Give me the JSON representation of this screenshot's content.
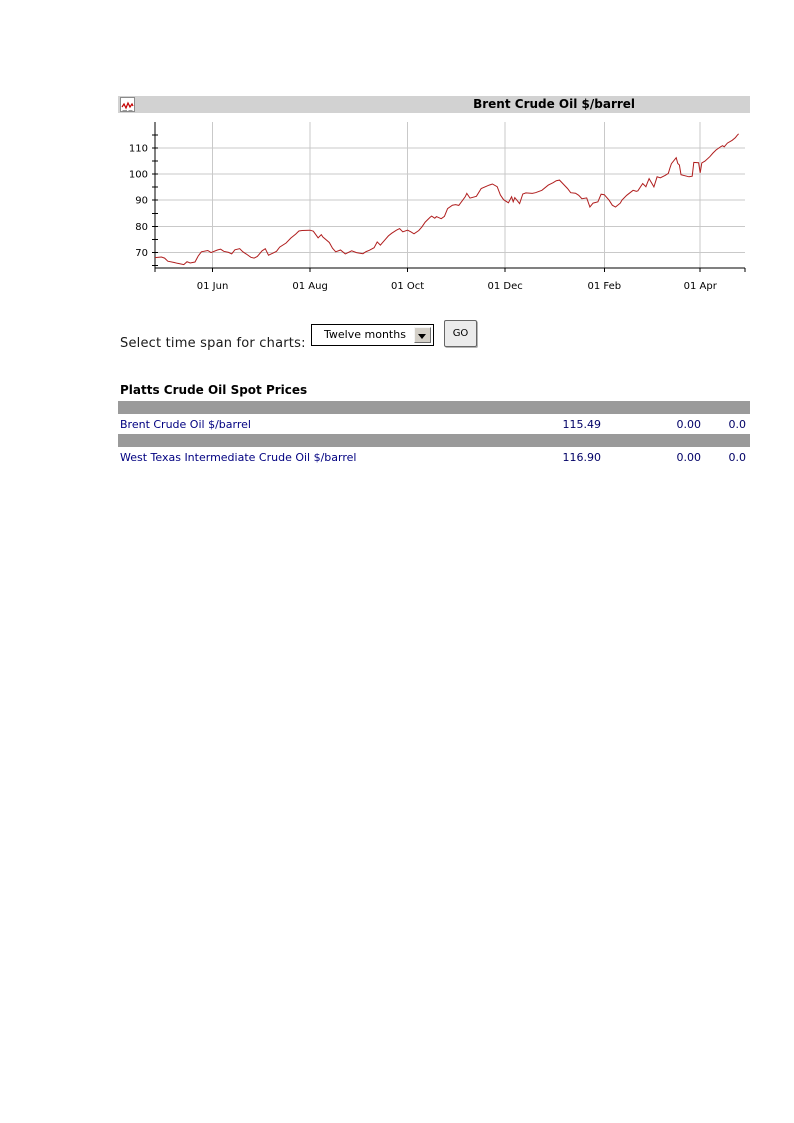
{
  "colors": {
    "line": "#b01e1e",
    "grid": "#c9c9c9",
    "axis": "#000000",
    "header_bar": "#d2d2d2",
    "separator_bar": "#9a9a9a",
    "link_navy": "#000080"
  },
  "chart_panel": {
    "title": "Brent Crude Oil $/barrel",
    "icon": "mini-line-chart-icon"
  },
  "chart_data": {
    "type": "line",
    "title": "Brent Crude Oil $/barrel",
    "ylim": [
      64,
      120
    ],
    "y_tick_labels": [
      70,
      80,
      90,
      100,
      110
    ],
    "y_minor_ticks": [
      65,
      75,
      85,
      95,
      105,
      115
    ],
    "y_gridlines": [
      70,
      80,
      90,
      100,
      110
    ],
    "x_range": [
      "2007-04-26",
      "2008-04-29"
    ],
    "x_ticks": [
      {
        "date": "2007-06-01",
        "label": "01 Jun"
      },
      {
        "date": "2007-08-01",
        "label": "01 Aug"
      },
      {
        "date": "2007-10-01",
        "label": "01 Oct"
      },
      {
        "date": "2007-12-01",
        "label": "01 Dec"
      },
      {
        "date": "2008-02-01",
        "label": "01 Feb"
      },
      {
        "date": "2008-04-01",
        "label": "01 Apr"
      }
    ],
    "grid": true,
    "legend": "none",
    "series_name": "Brent Crude Oil $/barrel",
    "points": [
      [
        "2007-04-26",
        68.0
      ],
      [
        "2007-04-30",
        68.2
      ],
      [
        "2007-05-02",
        67.8
      ],
      [
        "2007-05-04",
        66.6
      ],
      [
        "2007-05-08",
        66.1
      ],
      [
        "2007-05-10",
        65.8
      ],
      [
        "2007-05-14",
        65.3
      ],
      [
        "2007-05-16",
        66.4
      ],
      [
        "2007-05-18",
        65.9
      ],
      [
        "2007-05-21",
        66.3
      ],
      [
        "2007-05-23",
        68.6
      ],
      [
        "2007-05-25",
        70.2
      ],
      [
        "2007-05-29",
        70.7
      ],
      [
        "2007-05-31",
        69.9
      ],
      [
        "2007-06-04",
        70.9
      ],
      [
        "2007-06-06",
        71.2
      ],
      [
        "2007-06-08",
        70.4
      ],
      [
        "2007-06-11",
        70.0
      ],
      [
        "2007-06-13",
        69.4
      ],
      [
        "2007-06-15",
        71.0
      ],
      [
        "2007-06-18",
        71.4
      ],
      [
        "2007-06-20",
        70.2
      ],
      [
        "2007-06-22",
        69.4
      ],
      [
        "2007-06-25",
        68.1
      ],
      [
        "2007-06-27",
        67.8
      ],
      [
        "2007-06-29",
        68.4
      ],
      [
        "2007-07-02",
        70.6
      ],
      [
        "2007-07-04",
        71.4
      ],
      [
        "2007-07-06",
        68.9
      ],
      [
        "2007-07-09",
        69.8
      ],
      [
        "2007-07-11",
        70.4
      ],
      [
        "2007-07-13",
        72.0
      ],
      [
        "2007-07-17",
        73.6
      ],
      [
        "2007-07-20",
        75.5
      ],
      [
        "2007-07-23",
        77.0
      ],
      [
        "2007-07-25",
        78.2
      ],
      [
        "2007-07-27",
        78.4
      ],
      [
        "2007-08-01",
        78.5
      ],
      [
        "2007-08-03",
        78.1
      ],
      [
        "2007-08-06",
        75.6
      ],
      [
        "2007-08-08",
        76.8
      ],
      [
        "2007-08-09",
        75.9
      ],
      [
        "2007-08-13",
        73.8
      ],
      [
        "2007-08-15",
        71.6
      ],
      [
        "2007-08-17",
        70.2
      ],
      [
        "2007-08-20",
        70.9
      ],
      [
        "2007-08-23",
        69.4
      ],
      [
        "2007-08-27",
        70.6
      ],
      [
        "2007-08-30",
        69.9
      ],
      [
        "2007-09-03",
        69.5
      ],
      [
        "2007-09-05",
        70.3
      ],
      [
        "2007-09-07",
        70.8
      ],
      [
        "2007-09-10",
        71.8
      ],
      [
        "2007-09-12",
        74.0
      ],
      [
        "2007-09-14",
        72.8
      ],
      [
        "2007-09-17",
        74.9
      ],
      [
        "2007-09-19",
        76.3
      ],
      [
        "2007-09-21",
        77.3
      ],
      [
        "2007-09-24",
        78.5
      ],
      [
        "2007-09-26",
        79.1
      ],
      [
        "2007-09-28",
        77.9
      ],
      [
        "2007-10-01",
        78.5
      ],
      [
        "2007-10-03",
        77.9
      ],
      [
        "2007-10-05",
        77.1
      ],
      [
        "2007-10-08",
        78.4
      ],
      [
        "2007-10-10",
        79.8
      ],
      [
        "2007-10-12",
        81.6
      ],
      [
        "2007-10-15",
        83.4
      ],
      [
        "2007-10-16",
        83.9
      ],
      [
        "2007-10-18",
        83.1
      ],
      [
        "2007-10-19",
        83.7
      ],
      [
        "2007-10-22",
        82.9
      ],
      [
        "2007-10-24",
        83.8
      ],
      [
        "2007-10-26",
        86.8
      ],
      [
        "2007-10-29",
        88.1
      ],
      [
        "2007-10-31",
        88.3
      ],
      [
        "2007-11-02",
        88.0
      ],
      [
        "2007-11-06",
        91.3
      ],
      [
        "2007-11-07",
        92.6
      ],
      [
        "2007-11-09",
        90.8
      ],
      [
        "2007-11-13",
        91.5
      ],
      [
        "2007-11-16",
        94.5
      ],
      [
        "2007-11-21",
        95.8
      ],
      [
        "2007-11-23",
        96.2
      ],
      [
        "2007-11-26",
        95.2
      ],
      [
        "2007-11-28",
        92.0
      ],
      [
        "2007-11-30",
        90.2
      ],
      [
        "2007-12-03",
        89.0
      ],
      [
        "2007-12-05",
        91.3
      ],
      [
        "2007-12-06",
        89.4
      ],
      [
        "2007-12-07",
        91.0
      ],
      [
        "2007-12-10",
        88.7
      ],
      [
        "2007-12-12",
        92.4
      ],
      [
        "2007-12-14",
        92.8
      ],
      [
        "2007-12-18",
        92.6
      ],
      [
        "2007-12-20",
        92.9
      ],
      [
        "2007-12-24",
        93.8
      ],
      [
        "2007-12-28",
        95.8
      ],
      [
        "2007-12-31",
        96.7
      ],
      [
        "2008-01-02",
        97.5
      ],
      [
        "2008-01-04",
        97.7
      ],
      [
        "2008-01-07",
        95.8
      ],
      [
        "2008-01-09",
        94.5
      ],
      [
        "2008-01-11",
        92.9
      ],
      [
        "2008-01-14",
        92.7
      ],
      [
        "2008-01-16",
        91.9
      ],
      [
        "2008-01-18",
        90.6
      ],
      [
        "2008-01-21",
        90.9
      ],
      [
        "2008-01-23",
        87.4
      ],
      [
        "2008-01-25",
        88.9
      ],
      [
        "2008-01-28",
        89.4
      ],
      [
        "2008-01-30",
        92.3
      ],
      [
        "2008-02-01",
        92.1
      ],
      [
        "2008-02-04",
        90.0
      ],
      [
        "2008-02-06",
        88.1
      ],
      [
        "2008-02-08",
        87.4
      ],
      [
        "2008-02-11",
        88.9
      ],
      [
        "2008-02-12",
        90.0
      ],
      [
        "2008-02-15",
        91.9
      ],
      [
        "2008-02-19",
        93.8
      ],
      [
        "2008-02-21",
        93.4
      ],
      [
        "2008-02-22",
        93.6
      ],
      [
        "2008-02-25",
        96.4
      ],
      [
        "2008-02-27",
        95.2
      ],
      [
        "2008-02-28",
        96.8
      ],
      [
        "2008-02-29",
        98.3
      ],
      [
        "2008-03-03",
        95.1
      ],
      [
        "2008-03-05",
        99.0
      ],
      [
        "2008-03-07",
        98.6
      ],
      [
        "2008-03-10",
        99.5
      ],
      [
        "2008-03-12",
        100.3
      ],
      [
        "2008-03-13",
        102.3
      ],
      [
        "2008-03-14",
        104.0
      ],
      [
        "2008-03-17",
        106.3
      ],
      [
        "2008-03-18",
        104.1
      ],
      [
        "2008-03-19",
        103.5
      ],
      [
        "2008-03-20",
        99.8
      ],
      [
        "2008-03-25",
        99.0
      ],
      [
        "2008-03-27",
        99.2
      ],
      [
        "2008-03-28",
        104.5
      ],
      [
        "2008-03-31",
        104.4
      ],
      [
        "2008-04-01",
        100.5
      ],
      [
        "2008-04-02",
        104.3
      ],
      [
        "2008-04-04",
        105.0
      ],
      [
        "2008-04-07",
        106.7
      ],
      [
        "2008-04-09",
        108.1
      ],
      [
        "2008-04-11",
        109.3
      ],
      [
        "2008-04-14",
        110.6
      ],
      [
        "2008-04-15",
        110.9
      ],
      [
        "2008-04-16",
        110.5
      ],
      [
        "2008-04-18",
        111.9
      ],
      [
        "2008-04-21",
        113.0
      ],
      [
        "2008-04-23",
        114.0
      ],
      [
        "2008-04-24",
        114.8
      ],
      [
        "2008-04-25",
        115.49
      ]
    ]
  },
  "controls": {
    "label": "Select time span for charts:",
    "select_value": "Twelve months",
    "go_label": "GO"
  },
  "table": {
    "heading": "Platts Crude Oil Spot Prices",
    "rows": [
      {
        "name": "Brent Crude Oil $/barrel",
        "last": "115.49",
        "change": "0.00",
        "pct": "0.0"
      },
      {
        "name": "West Texas Intermediate Crude Oil $/barrel",
        "last": "116.90",
        "change": "0.00",
        "pct": "0.0"
      }
    ]
  }
}
